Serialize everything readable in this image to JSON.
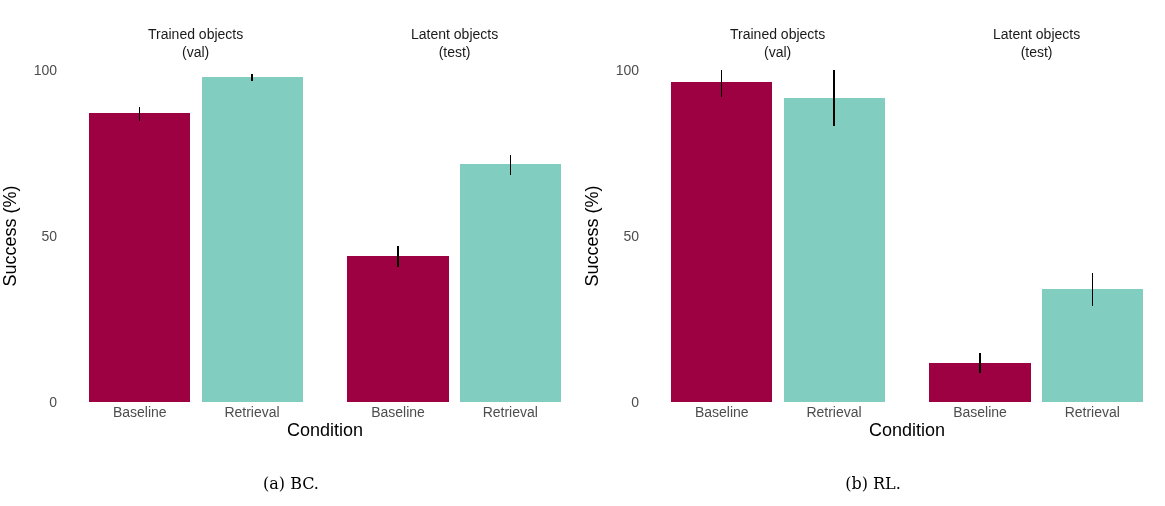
{
  "chart_data": [
    {
      "type": "bar",
      "title": "(a) BC.",
      "xlabel": "Condition",
      "ylabel": "Success (%)",
      "categories": [
        "Baseline",
        "Retrieval",
        "Baseline",
        "Retrieval"
      ],
      "values": [
        87.1,
        97.9,
        44.0,
        71.6
      ],
      "colors": [
        "#9e0142",
        "#81cec1",
        "#9e0142",
        "#81cec1"
      ],
      "errors": [
        [
          84.7,
          88.9
        ],
        [
          96.7,
          98.8
        ],
        [
          40.6,
          47.1
        ],
        [
          68.5,
          74.4
        ]
      ],
      "annotations": [
        "Trained objects\n(val)",
        "Latent objects\n(test)"
      ],
      "ylim": [
        0,
        100
      ],
      "yticks": [
        0,
        50,
        100
      ],
      "grid": false,
      "legend": false
    },
    {
      "type": "bar",
      "title": "(b) RL.",
      "xlabel": "Condition",
      "ylabel": "Success (%)",
      "categories": [
        "Baseline",
        "Retrieval",
        "Baseline",
        "Retrieval"
      ],
      "values": [
        96.4,
        91.7,
        11.8,
        34.1
      ],
      "colors": [
        "#9e0142",
        "#81cec1",
        "#9e0142",
        "#81cec1"
      ],
      "errors": [
        [
          91.9,
          100
        ],
        [
          83.2,
          100
        ],
        [
          8.8,
          14.8
        ],
        [
          28.8,
          39.0
        ]
      ],
      "annotations": [
        "Trained objects\n(val)",
        "Latent objects\n(test)"
      ],
      "ylim": [
        0,
        100
      ],
      "yticks": [
        0,
        50,
        100
      ],
      "grid": false,
      "legend": false
    }
  ]
}
